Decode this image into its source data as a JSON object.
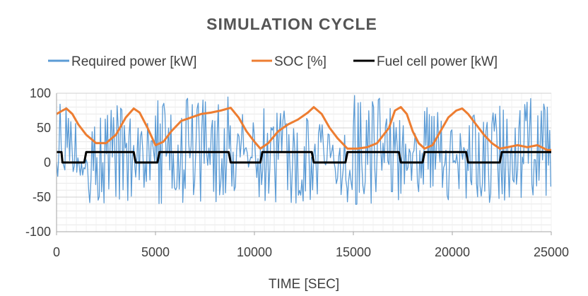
{
  "chart_data": {
    "type": "line",
    "title": "SIMULATION CYCLE",
    "xlabel": "TIME [SEC]",
    "ylabel": "",
    "xlim": [
      0,
      25000
    ],
    "ylim": [
      -100,
      100
    ],
    "x_ticks": [
      "0",
      "5000",
      "10000",
      "15000",
      "20000",
      "25000"
    ],
    "y_ticks": [
      "100",
      "50",
      "0",
      "-50",
      "-100"
    ],
    "grid": true,
    "legend_position": "top",
    "series": [
      {
        "name": "Required power [kW]",
        "color": "#5B9BD5",
        "segments": [
          {
            "x": [
              0,
              1500
            ],
            "min": -20,
            "max": 90
          },
          {
            "x": [
              1500,
              4000
            ],
            "min": -60,
            "max": 85
          },
          {
            "x": [
              4000,
              5000
            ],
            "min": -40,
            "max": 60
          },
          {
            "x": [
              5000,
              8800
            ],
            "min": -60,
            "max": 95
          },
          {
            "x": [
              8800,
              10300
            ],
            "min": -50,
            "max": 70
          },
          {
            "x": [
              10300,
              13000
            ],
            "min": -60,
            "max": 85
          },
          {
            "x": [
              13000,
              14700
            ],
            "min": -55,
            "max": 60
          },
          {
            "x": [
              14700,
              17400
            ],
            "min": -65,
            "max": 98
          },
          {
            "x": [
              17400,
              18600
            ],
            "min": -45,
            "max": 65
          },
          {
            "x": [
              18600,
              20800
            ],
            "min": -55,
            "max": 90
          },
          {
            "x": [
              20800,
              22400
            ],
            "min": -60,
            "max": 75
          },
          {
            "x": [
              22400,
              25000
            ],
            "min": -60,
            "max": 98
          }
        ]
      },
      {
        "name": "SOC [%]",
        "color": "#ED7D31",
        "x": [
          0,
          300,
          500,
          800,
          1100,
          1500,
          2000,
          2500,
          3000,
          3500,
          3900,
          4200,
          4600,
          5000,
          5400,
          5800,
          6300,
          6800,
          7300,
          7800,
          8300,
          8800,
          9200,
          9600,
          10000,
          10300,
          10700,
          11200,
          11700,
          12200,
          12700,
          13000,
          13400,
          13800,
          14200,
          14700,
          15200,
          15700,
          16200,
          16800,
          17100,
          17400,
          17700,
          18000,
          18300,
          18600,
          19000,
          19400,
          19800,
          20200,
          20500,
          20800,
          21200,
          21600,
          22000,
          22400,
          22800,
          23300,
          23800,
          24300,
          24800,
          25000
        ],
        "y": [
          70,
          75,
          78,
          70,
          55,
          40,
          28,
          28,
          40,
          65,
          78,
          72,
          50,
          25,
          30,
          45,
          60,
          65,
          70,
          72,
          75,
          79,
          65,
          45,
          30,
          20,
          28,
          45,
          55,
          62,
          72,
          80,
          70,
          50,
          35,
          20,
          20,
          22,
          28,
          50,
          75,
          80,
          70,
          45,
          28,
          20,
          25,
          45,
          65,
          75,
          78,
          70,
          55,
          40,
          28,
          20,
          22,
          25,
          22,
          25,
          18,
          18
        ]
      },
      {
        "name": "Fuel cell power [kW]",
        "color": "#000000",
        "x": [
          0,
          250,
          300,
          1400,
          1500,
          3900,
          4000,
          5100,
          5200,
          8700,
          8800,
          10300,
          10400,
          12900,
          13000,
          14600,
          14700,
          17300,
          17400,
          18500,
          18600,
          20700,
          20800,
          22400,
          22500,
          25000
        ],
        "y": [
          15,
          15,
          0,
          0,
          15,
          15,
          0,
          0,
          15,
          15,
          0,
          0,
          15,
          15,
          0,
          0,
          15,
          15,
          0,
          0,
          15,
          15,
          0,
          0,
          15,
          15
        ]
      }
    ]
  }
}
